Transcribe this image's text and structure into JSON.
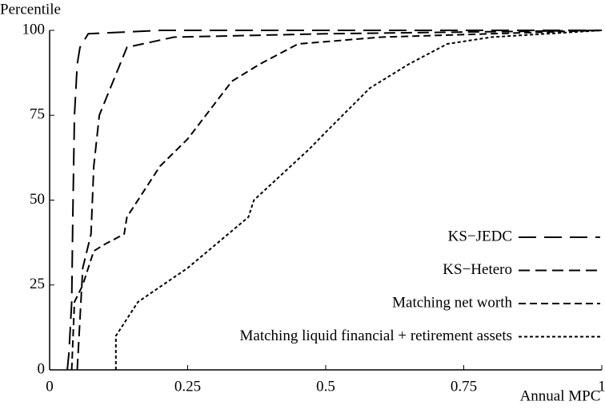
{
  "chart_data": {
    "type": "line",
    "xlabel": "Annual MPC",
    "ylabel": "Percentile",
    "xlim": [
      0,
      1
    ],
    "ylim": [
      0,
      100
    ],
    "xticks": [
      0,
      0.25,
      0.5,
      0.75,
      1
    ],
    "yticks": [
      0,
      25,
      50,
      75,
      100
    ],
    "legend": "lower right",
    "series": [
      {
        "name": "KS−JEDC",
        "color": "#000000",
        "dash": "22,10",
        "x": [
          0.032,
          0.035,
          0.04,
          0.042,
          0.045,
          0.05,
          0.055,
          0.07,
          0.2,
          1
        ],
        "values": [
          0,
          5,
          20,
          45,
          75,
          90,
          95,
          99,
          100,
          100
        ]
      },
      {
        "name": "KS−Hetero",
        "color": "#000000",
        "dash": "14,7",
        "x": [
          0.05,
          0.06,
          0.075,
          0.08,
          0.09,
          0.115,
          0.14,
          0.225,
          0.5,
          1
        ],
        "values": [
          0,
          30,
          40,
          60,
          75,
          85,
          95,
          98,
          99,
          100
        ]
      },
      {
        "name": "Matching net worth",
        "color": "#000000",
        "dash": "9,5",
        "x": [
          0.04,
          0.045,
          0.06,
          0.08,
          0.1,
          0.135,
          0.14,
          0.2,
          0.25,
          0.33,
          0.38,
          0.45,
          0.6,
          1
        ],
        "values": [
          0,
          20,
          25,
          35,
          37,
          40,
          45,
          60,
          68,
          85,
          90,
          96,
          98,
          100
        ]
      },
      {
        "name": "Matching liquid financial + retirement assets",
        "color": "#000000",
        "dash": "4,3",
        "x": [
          0.12,
          0.12,
          0.14,
          0.16,
          0.25,
          0.36,
          0.37,
          0.47,
          0.5,
          0.58,
          0.65,
          0.72,
          0.8,
          1
        ],
        "values": [
          0,
          10,
          15,
          20,
          30,
          45,
          50,
          65,
          70,
          83,
          90,
          96,
          98,
          100
        ]
      }
    ]
  }
}
